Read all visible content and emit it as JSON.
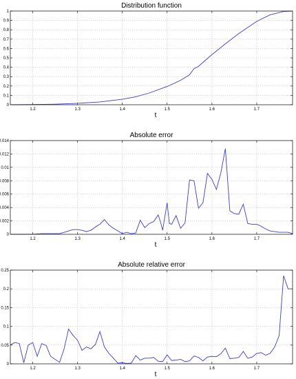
{
  "chart_data": [
    {
      "type": "line",
      "title": "Distribution function",
      "xlabel": "t",
      "ylabel": "",
      "xlim": [
        1.15,
        1.78
      ],
      "ylim": [
        0,
        1
      ],
      "xticks": [
        "1.2",
        "1.3",
        "1.4",
        "1.5",
        "1.6",
        "1.7"
      ],
      "yticks": [
        "0",
        "0.1",
        "0.2",
        "0.3",
        "0.4",
        "0.5",
        "0.6",
        "0.7",
        "0.8",
        "0.9",
        "1"
      ],
      "grid": true,
      "series": [
        {
          "x": [
            1.15,
            1.2,
            1.25,
            1.3,
            1.35,
            1.4,
            1.43,
            1.46,
            1.5,
            1.53,
            1.55,
            1.56,
            1.57,
            1.6,
            1.63,
            1.66,
            1.7,
            1.73,
            1.76,
            1.78
          ],
          "values": [
            0.0,
            0.002,
            0.006,
            0.015,
            0.03,
            0.058,
            0.085,
            0.125,
            0.195,
            0.26,
            0.32,
            0.385,
            0.41,
            0.535,
            0.65,
            0.76,
            0.89,
            0.96,
            0.995,
            1.0
          ]
        }
      ]
    },
    {
      "type": "line",
      "title": "Absolute error",
      "xlabel": "t",
      "ylabel": "",
      "xlim": [
        1.15,
        1.78
      ],
      "ylim": [
        0,
        0.014
      ],
      "xticks": [
        "1.2",
        "1.3",
        "1.4",
        "1.5",
        "1.6",
        "1.7"
      ],
      "yticks": [
        "0",
        "0.002",
        "0.004",
        "0.006",
        "0.008",
        "0.01",
        "0.012",
        "0.014"
      ],
      "grid": true,
      "series": [
        {
          "x": [
            1.15,
            1.16,
            1.18,
            1.2,
            1.22,
            1.24,
            1.26,
            1.28,
            1.29,
            1.3,
            1.31,
            1.32,
            1.33,
            1.34,
            1.35,
            1.36,
            1.37,
            1.38,
            1.39,
            1.4,
            1.41,
            1.42,
            1.43,
            1.44,
            1.45,
            1.46,
            1.47,
            1.48,
            1.485,
            1.49,
            1.5,
            1.505,
            1.51,
            1.52,
            1.53,
            1.54,
            1.55,
            1.56,
            1.57,
            1.58,
            1.59,
            1.6,
            1.61,
            1.62,
            1.63,
            1.64,
            1.65,
            1.66,
            1.67,
            1.68,
            1.69,
            1.7,
            1.71,
            1.72,
            1.73,
            1.74,
            1.75,
            1.76,
            1.77,
            1.78
          ],
          "values": [
            0.0,
            0.0,
            0.0,
            0.0,
            0.0001,
            0.0001,
            0.0001,
            0.0005,
            0.0007,
            0.0007,
            0.0006,
            0.0004,
            0.0006,
            0.0011,
            0.0015,
            0.0022,
            0.0014,
            0.0009,
            0.0005,
            0.0001,
            0.0003,
            0.0001,
            0.0002,
            0.0021,
            0.001,
            0.0016,
            0.0019,
            0.0029,
            0.0019,
            0.0006,
            0.0047,
            0.0016,
            0.0015,
            0.0028,
            0.0009,
            0.0017,
            0.0081,
            0.008,
            0.0039,
            0.0047,
            0.0091,
            0.0082,
            0.0067,
            0.0092,
            0.0128,
            0.0035,
            0.0031,
            0.003,
            0.0045,
            0.0016,
            0.0015,
            0.0015,
            0.0012,
            0.0008,
            0.0005,
            0.0004,
            0.0003,
            0.0003,
            0.0003,
            0.0001
          ]
        }
      ]
    },
    {
      "type": "line",
      "title": "Absolute relative error",
      "xlabel": "t",
      "ylabel": "",
      "xlim": [
        1.15,
        1.78
      ],
      "ylim": [
        0,
        0.25
      ],
      "xticks": [
        "1.2",
        "1.3",
        "1.4",
        "1.5",
        "1.6",
        "1.7"
      ],
      "yticks": [
        "0",
        "0.05",
        "0.1",
        "0.15",
        "0.2",
        "0.25"
      ],
      "grid": true,
      "series": [
        {
          "x": [
            1.15,
            1.16,
            1.17,
            1.18,
            1.19,
            1.2,
            1.21,
            1.22,
            1.23,
            1.24,
            1.26,
            1.27,
            1.28,
            1.29,
            1.3,
            1.31,
            1.32,
            1.33,
            1.34,
            1.35,
            1.36,
            1.37,
            1.38,
            1.39,
            1.4,
            1.41,
            1.42,
            1.43,
            1.44,
            1.45,
            1.46,
            1.47,
            1.48,
            1.49,
            1.5,
            1.51,
            1.52,
            1.53,
            1.54,
            1.55,
            1.56,
            1.57,
            1.58,
            1.59,
            1.6,
            1.61,
            1.62,
            1.63,
            1.64,
            1.65,
            1.66,
            1.67,
            1.68,
            1.69,
            1.7,
            1.71,
            1.72,
            1.73,
            1.74,
            1.75,
            1.76,
            1.77,
            1.78
          ],
          "values": [
            0.05,
            0.057,
            0.054,
            0.003,
            0.05,
            0.057,
            0.02,
            0.054,
            0.049,
            0.02,
            0.004,
            0.04,
            0.093,
            0.076,
            0.063,
            0.036,
            0.045,
            0.04,
            0.052,
            0.086,
            0.045,
            0.028,
            0.015,
            0.002,
            0.003,
            0.001,
            0.002,
            0.022,
            0.01,
            0.015,
            0.015,
            0.017,
            0.007,
            0.006,
            0.024,
            0.009,
            0.01,
            0.012,
            0.006,
            0.008,
            0.021,
            0.017,
            0.008,
            0.018,
            0.02,
            0.019,
            0.027,
            0.042,
            0.014,
            0.015,
            0.017,
            0.033,
            0.015,
            0.018,
            0.028,
            0.03,
            0.023,
            0.028,
            0.045,
            0.075,
            0.235,
            0.2,
            0.2
          ]
        }
      ]
    }
  ],
  "colors": {
    "line": "#3b3bd1",
    "grid": "#bdbdbd"
  }
}
